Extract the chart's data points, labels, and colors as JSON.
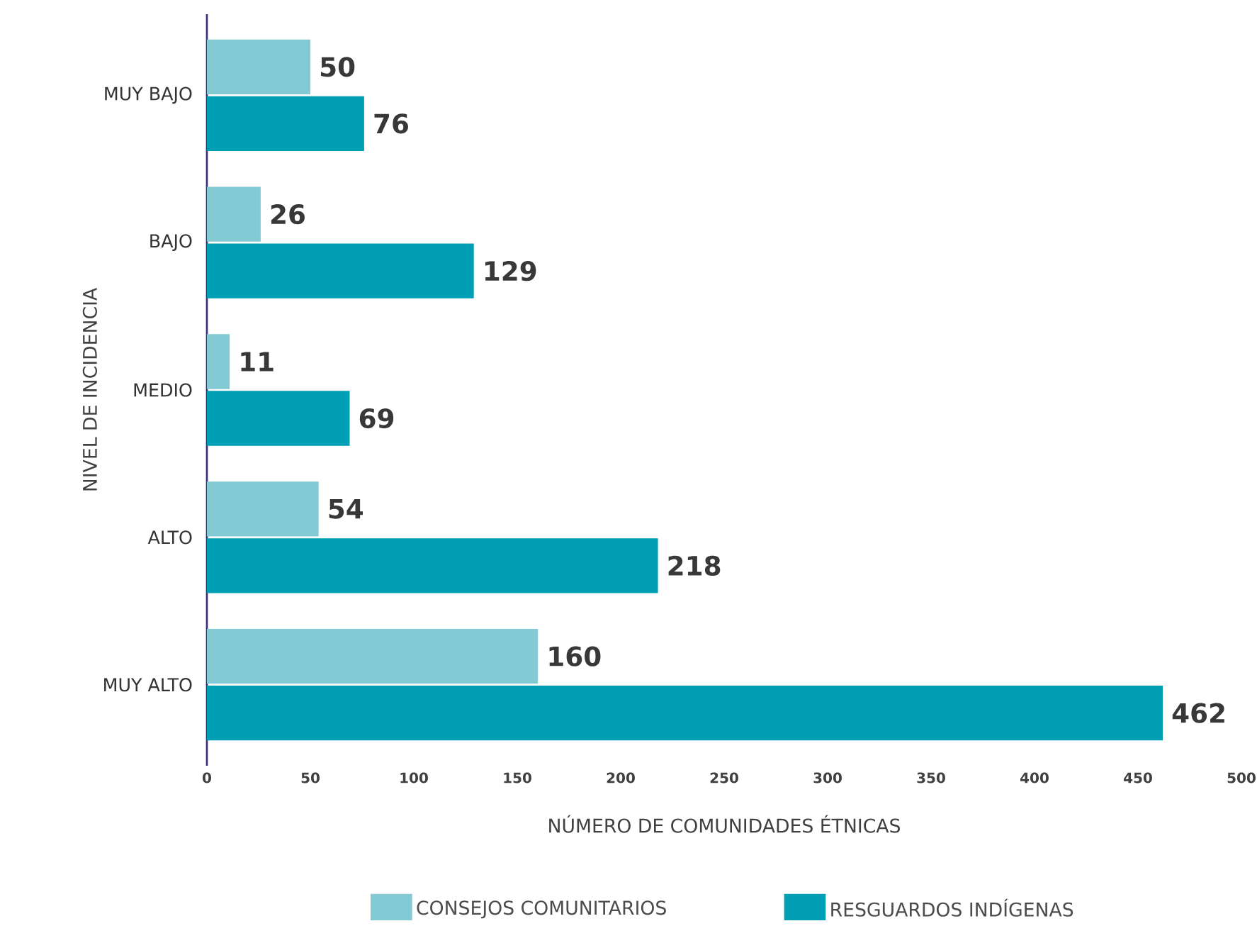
{
  "chart_data": {
    "type": "bar",
    "orientation": "horizontal",
    "categories": [
      "MUY BAJO",
      "BAJO",
      "MEDIO",
      "ALTO",
      "MUY ALTO"
    ],
    "series": [
      {
        "name": "CONSEJOS COMUNITARIOS",
        "color": "#84cad5",
        "values": [
          50,
          26,
          11,
          54,
          160
        ]
      },
      {
        "name": "RESGUARDOS INDÍGENAS",
        "color": "#009fb4",
        "values": [
          76,
          129,
          69,
          218,
          462
        ]
      }
    ],
    "xlim": [
      0,
      500
    ],
    "xticks": [
      0,
      50,
      100,
      150,
      200,
      250,
      300,
      350,
      400,
      450,
      500
    ],
    "xlabel": "NÚMERO DE COMUNIDADES ÉTNICAS",
    "ylabel": "NIVEL DE INCIDENCIA",
    "data_labels": true,
    "legend": "bottom"
  }
}
